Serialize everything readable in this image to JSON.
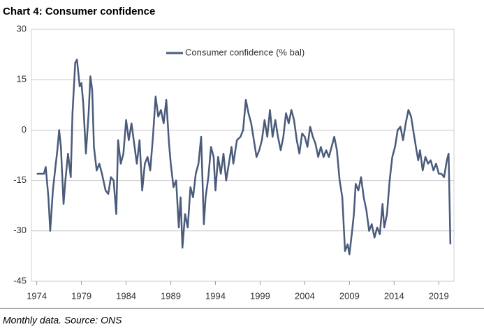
{
  "chart_data": {
    "type": "line",
    "title": "Chart 4: Consumer confidence",
    "caption": "Monthly data. Source: ONS",
    "x": [
      1974.0,
      1974.8,
      1975.0,
      1975.3,
      1975.5,
      1975.8,
      1976.0,
      1976.3,
      1976.5,
      1976.7,
      1977.0,
      1977.2,
      1977.5,
      1977.8,
      1978.0,
      1978.3,
      1978.5,
      1978.8,
      1979.0,
      1979.2,
      1979.5,
      1979.8,
      1980.0,
      1980.2,
      1980.4,
      1980.7,
      1981.0,
      1981.3,
      1981.7,
      1982.0,
      1982.3,
      1982.6,
      1982.9,
      1983.1,
      1983.4,
      1983.7,
      1984.0,
      1984.3,
      1984.6,
      1984.9,
      1985.2,
      1985.5,
      1985.8,
      1986.1,
      1986.4,
      1986.7,
      1987.0,
      1987.3,
      1987.6,
      1987.9,
      1988.2,
      1988.5,
      1988.8,
      1989.0,
      1989.3,
      1989.6,
      1989.9,
      1990.1,
      1990.3,
      1990.6,
      1990.9,
      1991.2,
      1991.5,
      1991.8,
      1992.1,
      1992.4,
      1992.7,
      1992.9,
      1993.2,
      1993.5,
      1993.8,
      1994.0,
      1994.3,
      1994.6,
      1994.9,
      1995.2,
      1995.5,
      1995.8,
      1996.0,
      1996.4,
      1996.8,
      1997.1,
      1997.4,
      1997.7,
      1998.0,
      1998.3,
      1998.6,
      1998.9,
      1999.2,
      1999.5,
      1999.8,
      2000.1,
      2000.4,
      2000.7,
      2001.0,
      2001.3,
      2001.6,
      2001.9,
      2002.2,
      2002.5,
      2002.8,
      2003.1,
      2003.4,
      2003.7,
      2004.0,
      2004.3,
      2004.6,
      2004.9,
      2005.2,
      2005.5,
      2005.8,
      2006.1,
      2006.4,
      2006.7,
      2007.0,
      2007.3,
      2007.6,
      2007.9,
      2008.2,
      2008.5,
      2008.8,
      2009.0,
      2009.3,
      2009.5,
      2009.7,
      2010.0,
      2010.3,
      2010.6,
      2010.9,
      2011.2,
      2011.5,
      2011.8,
      2012.1,
      2012.4,
      2012.7,
      2012.9,
      2013.2,
      2013.5,
      2013.8,
      2014.1,
      2014.4,
      2014.7,
      2015.0,
      2015.3,
      2015.6,
      2015.9,
      2016.2,
      2016.5,
      2016.7,
      2016.9,
      2017.2,
      2017.5,
      2017.8,
      2018.1,
      2018.4,
      2018.7,
      2019.0,
      2019.3,
      2019.6,
      2019.9,
      2020.1,
      2020.3
    ],
    "series": [
      {
        "name": "Consumer confidence (% bal)",
        "color": "#4a5b7b",
        "values": [
          -13,
          -13,
          -11,
          -20,
          -30,
          -18,
          -13,
          -6,
          0,
          -5,
          -22,
          -15,
          -7,
          -14,
          5,
          20,
          21,
          13,
          14,
          8,
          -7,
          5,
          16,
          12,
          -5,
          -12,
          -10,
          -13,
          -18,
          -19,
          -14,
          -15,
          -25,
          -3,
          -10,
          -7,
          3,
          -3,
          2,
          -4,
          -10,
          -3,
          -18,
          -10,
          -8,
          -12,
          -2,
          10,
          4,
          6,
          2,
          9,
          -4,
          -10,
          -17,
          -15,
          -29,
          -20,
          -35,
          -25,
          -29,
          -17,
          -20,
          -13,
          -10,
          -2,
          -28,
          -20,
          -14,
          -5,
          -8,
          -18,
          -8,
          -13,
          -7,
          -15,
          -10,
          -5,
          -10,
          -3,
          -2,
          0,
          9,
          5,
          2,
          -3,
          -8,
          -6,
          -3,
          3,
          -2,
          6,
          -2,
          3,
          -2,
          -6,
          -2,
          5,
          2,
          6,
          3,
          -3,
          -7,
          -1,
          -2,
          -5,
          1,
          -2,
          -4,
          -8,
          -5,
          -8,
          -6,
          -8,
          -5,
          -2,
          -6,
          -15,
          -20,
          -36,
          -34,
          -37,
          -30,
          -25,
          -16,
          -18,
          -14,
          -20,
          -24,
          -30,
          -28,
          -32,
          -29,
          -31,
          -22,
          -29,
          -25,
          -15,
          -8,
          -5,
          0,
          1,
          -3,
          2,
          6,
          4,
          -1,
          -6,
          -9,
          -6,
          -12,
          -8,
          -10,
          -9,
          -12,
          -10,
          -13,
          -13,
          -14,
          -9,
          -7,
          -34
        ]
      }
    ],
    "xlim": [
      1973.4,
      2020.7
    ],
    "xticks": [
      1974,
      1979,
      1984,
      1989,
      1994,
      1999,
      2004,
      2009,
      2014,
      2019
    ],
    "ylim": [
      -45,
      30
    ],
    "yticks": [
      -45,
      -30,
      -15,
      0,
      15,
      30
    ],
    "grid": true,
    "legend": "top"
  }
}
